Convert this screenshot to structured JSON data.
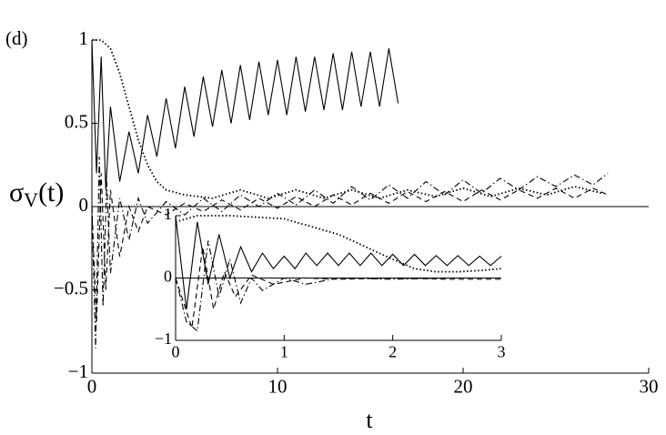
{
  "chart_data": [
    {
      "type": "line",
      "panel_label": "(d)",
      "xlabel": "t",
      "ylabel": {
        "symbol": "σ",
        "subscript": "V",
        "arg": "(t)"
      },
      "xlim": [
        0,
        30
      ],
      "ylim": [
        -1,
        1
      ],
      "xticks": [
        0,
        10,
        20,
        30
      ],
      "yticks": [
        {
          "value": -1,
          "label": "−1"
        },
        {
          "value": -0.5,
          "label": "−0.5"
        },
        0,
        0.5,
        1
      ],
      "series": [
        {
          "style": "solid",
          "color": "#000000",
          "x": [
            0,
            0.25,
            0.5,
            0.75,
            1,
            1.5,
            2,
            2.5,
            3,
            3.5,
            4,
            4.5,
            5,
            5.5,
            6,
            6.5,
            7,
            7.5,
            8,
            8.5,
            9,
            9.5,
            10,
            10.5,
            11,
            11.5,
            12,
            12.5,
            13,
            13.5,
            14,
            14.5,
            15,
            15.5,
            16,
            16.5
          ],
          "values": [
            1,
            0.2,
            0.9,
            0.1,
            0.6,
            0.15,
            0.45,
            0.2,
            0.55,
            0.3,
            0.65,
            0.35,
            0.72,
            0.42,
            0.78,
            0.48,
            0.82,
            0.5,
            0.85,
            0.52,
            0.87,
            0.55,
            0.88,
            0.55,
            0.9,
            0.57,
            0.9,
            0.58,
            0.92,
            0.58,
            0.93,
            0.6,
            0.93,
            0.6,
            0.95,
            0.62
          ]
        },
        {
          "style": "dotted",
          "color": "#000000",
          "x": [
            0,
            0.5,
            1,
            1.5,
            2,
            2.5,
            3,
            3.5,
            4,
            5,
            6.5,
            8,
            9.5,
            11,
            12.5,
            14,
            15.5,
            17,
            18.5,
            20,
            21.5,
            23,
            24.5,
            26,
            27.5
          ],
          "values": [
            1,
            1,
            0.95,
            0.8,
            0.6,
            0.4,
            0.25,
            0.15,
            0.1,
            0.07,
            0.05,
            0.1,
            0.05,
            0.1,
            0.05,
            0.1,
            0.05,
            0.1,
            0.06,
            0.11,
            0.06,
            0.11,
            0.07,
            0.12,
            0.08
          ]
        },
        {
          "style": "dashdot",
          "color": "#000000",
          "x": [
            0,
            0.2,
            0.4,
            0.6,
            0.8,
            1,
            1.5,
            2,
            2.5,
            3,
            4,
            5,
            6,
            7,
            8,
            9,
            10,
            11,
            12,
            13,
            14,
            15,
            16,
            17,
            18,
            19,
            20,
            21,
            22,
            23,
            24,
            25,
            26,
            27,
            27.8
          ],
          "values": [
            0,
            -0.85,
            0.3,
            -0.6,
            0.15,
            -0.4,
            0.05,
            -0.2,
            0.05,
            -0.1,
            0.03,
            -0.05,
            0.05,
            -0.03,
            0.07,
            0,
            0.08,
            0.01,
            0.1,
            0.02,
            0.12,
            0.04,
            0.13,
            0.05,
            0.15,
            0.07,
            0.16,
            0.08,
            0.17,
            0.1,
            0.18,
            0.12,
            0.19,
            0.13,
            0.2
          ]
        },
        {
          "style": "dashed",
          "color": "#000000",
          "x": [
            0,
            0.25,
            0.5,
            0.75,
            1,
            1.5,
            2,
            2.5,
            3,
            4,
            5,
            6,
            7,
            8,
            9,
            10,
            11,
            12,
            13,
            14,
            15,
            16,
            17,
            18,
            19,
            20,
            21,
            22,
            23,
            24,
            25,
            26,
            27,
            27.8
          ],
          "values": [
            0,
            -0.7,
            0.2,
            -0.5,
            0.1,
            -0.3,
            0,
            -0.15,
            0,
            -0.05,
            0.02,
            -0.03,
            0.04,
            -0.02,
            0.05,
            -0.01,
            0.06,
            0,
            0.07,
            0.01,
            0.08,
            0.02,
            0.09,
            0.03,
            0.09,
            0.03,
            0.1,
            0.04,
            0.1,
            0.05,
            0.11,
            0.05,
            0.11,
            0.07
          ]
        }
      ]
    },
    {
      "type": "line",
      "xlim": [
        0,
        3
      ],
      "ylim": [
        -1,
        1
      ],
      "xticks": [
        0,
        1,
        2,
        3
      ],
      "yticks": [
        {
          "value": -1,
          "label": "−1"
        },
        0,
        1
      ],
      "series": [
        {
          "style": "solid",
          "color": "#000000",
          "x": [
            0,
            0.1,
            0.2,
            0.3,
            0.4,
            0.5,
            0.6,
            0.7,
            0.8,
            0.9,
            1,
            1.1,
            1.2,
            1.3,
            1.4,
            1.5,
            1.6,
            1.7,
            1.8,
            1.9,
            2,
            2.1,
            2.2,
            2.3,
            2.4,
            2.5,
            2.6,
            2.7,
            2.8,
            2.9,
            3
          ],
          "values": [
            1,
            -0.5,
            0.9,
            -0.1,
            0.7,
            0,
            0.5,
            0.1,
            0.4,
            0.15,
            0.35,
            0.15,
            0.4,
            0.2,
            0.4,
            0.2,
            0.4,
            0.2,
            0.4,
            0.2,
            0.38,
            0.2,
            0.38,
            0.2,
            0.36,
            0.2,
            0.36,
            0.2,
            0.35,
            0.2,
            0.35
          ]
        },
        {
          "style": "dotted",
          "color": "#000000",
          "x": [
            0,
            0.2,
            0.5,
            1,
            1.5,
            2,
            2.2,
            2.4,
            2.6,
            2.8,
            3
          ],
          "values": [
            0.9,
            1,
            1,
            0.95,
            0.7,
            0.3,
            0.15,
            0.1,
            0.1,
            0.12,
            0.15
          ]
        },
        {
          "style": "dashdot",
          "color": "#000000",
          "x": [
            0,
            0.1,
            0.2,
            0.3,
            0.4,
            0.5,
            0.6,
            0.7,
            0.8,
            1,
            1.2,
            1.5,
            2,
            2.5,
            3
          ],
          "values": [
            0,
            -0.7,
            -0.85,
            0.6,
            -0.3,
            0.3,
            -0.4,
            0,
            -0.2,
            0,
            -0.1,
            0,
            -0.02,
            0,
            0
          ]
        },
        {
          "style": "dashed",
          "color": "#000000",
          "x": [
            0,
            0.15,
            0.25,
            0.35,
            0.45,
            0.55,
            0.7,
            0.9,
            1.2,
            1.5,
            2,
            2.5,
            3
          ],
          "values": [
            0,
            -0.8,
            0.5,
            -0.5,
            0.1,
            -0.3,
            0.05,
            -0.1,
            0,
            -0.02,
            0,
            -0.02,
            -0.02
          ]
        }
      ]
    }
  ]
}
